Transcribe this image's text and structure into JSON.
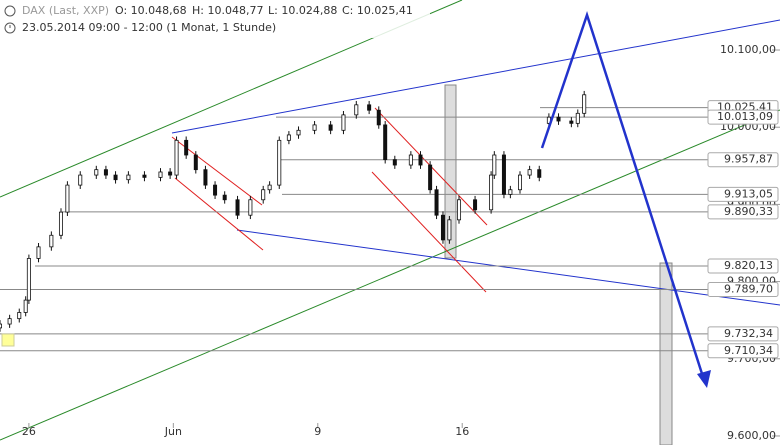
{
  "chart_data": {
    "type": "candlestick",
    "title": "DAX (Last, XXP)",
    "ohlc_header": [
      "O: 10.048,68",
      "H: 10.048,77",
      "L: 10.024,88",
      "C: 10.025,41"
    ],
    "subtitle": "23.05.2014 09:00 - 12:00 (1 Monat, 1 Stunde)",
    "x": [
      0,
      3,
      6,
      8,
      9,
      12,
      16,
      19,
      21,
      25,
      30,
      33,
      36,
      40,
      45,
      50,
      53,
      55,
      58,
      61,
      64,
      67,
      70,
      74,
      78,
      82,
      84,
      87,
      90,
      93,
      98,
      103,
      107,
      111,
      115,
      118,
      120,
      123,
      128,
      131,
      134,
      136,
      138,
      140,
      143,
      148,
      153,
      154,
      157,
      159,
      162,
      165,
      168,
      171,
      174,
      178,
      180,
      182
    ],
    "open": [
      9740,
      9745,
      9752,
      9760,
      9776,
      9830,
      9845,
      9860,
      9890,
      9925,
      9938,
      9945,
      9938,
      9932,
      9938,
      9935,
      9942,
      9938,
      9983,
      9964,
      9945,
      9925,
      9912,
      9906,
      9886,
      9906,
      9919,
      9925,
      9983,
      9990,
      9996,
      10003,
      9996,
      10016,
      10029,
      10022,
      10003,
      9958,
      9951,
      9964,
      9951,
      9919,
      9886,
      9854,
      9880,
      9906,
      9893,
      9938,
      9964,
      9913,
      9919,
      9938,
      9945,
      10005,
      10013,
      10008,
      10005,
      10018
    ],
    "high": [
      9750,
      9757,
      9765,
      9781,
      9835,
      9850,
      9865,
      9895,
      9930,
      9943,
      9950,
      9950,
      9943,
      9943,
      9943,
      9947,
      9947,
      9988,
      9988,
      9969,
      9950,
      9930,
      9917,
      9911,
      9911,
      9924,
      9930,
      9988,
      9995,
      10001,
      10008,
      10008,
      10021,
      10034,
      10034,
      10027,
      10008,
      9963,
      9969,
      9969,
      9956,
      9924,
      9891,
      9885,
      9911,
      9911,
      9943,
      9969,
      9969,
      9924,
      9943,
      9950,
      9950,
      10018,
      10018,
      10013,
      10023,
      10047
    ],
    "low": [
      9735,
      9740,
      9747,
      9755,
      9771,
      9825,
      9840,
      9855,
      9885,
      9920,
      9933,
      9933,
      9927,
      9927,
      9930,
      9930,
      9933,
      9933,
      9959,
      9940,
      9920,
      9907,
      9901,
      9881,
      9881,
      9901,
      9914,
      9920,
      9978,
      9985,
      9991,
      9991,
      9991,
      10011,
      10017,
      9998,
      9953,
      9946,
      9946,
      9946,
      9914,
      9881,
      9849,
      9849,
      9875,
      9888,
      9888,
      9933,
      9908,
      9908,
      9914,
      9933,
      9930,
      10000,
      10003,
      10000,
      10000,
      10013
    ],
    "close": [
      9745,
      9752,
      9760,
      9776,
      9830,
      9845,
      9860,
      9890,
      9925,
      9938,
      9945,
      9938,
      9932,
      9938,
      9935,
      9942,
      9938,
      9983,
      9964,
      9945,
      9925,
      9912,
      9906,
      9886,
      9906,
      9919,
      9925,
      9983,
      9990,
      9996,
      10003,
      9996,
      10016,
      10029,
      10022,
      10003,
      9958,
      9951,
      9964,
      9951,
      9919,
      9886,
      9854,
      9880,
      9906,
      9893,
      9938,
      9964,
      9913,
      9919,
      9938,
      9945,
      9935,
      10013,
      10008,
      10005,
      10018,
      10042
    ],
    "xlim": [
      0,
      243
    ],
    "xticks": [
      {
        "value": 9,
        "label": "26"
      },
      {
        "value": 54,
        "label": "Jun"
      },
      {
        "value": 99,
        "label": "9"
      },
      {
        "value": 144,
        "label": "16"
      }
    ],
    "ylim": [
      9588.3,
      10164.8
    ],
    "yticks": [
      {
        "value": 10100,
        "label": "10.100,00"
      },
      {
        "value": 10000,
        "label": "10.000,00"
      },
      {
        "value": 9900,
        "label": "9.900,00"
      },
      {
        "value": 9800,
        "label": "9.800,00"
      },
      {
        "value": 9700,
        "label": "9.700,00"
      },
      {
        "value": 9600,
        "label": "9.600,00"
      }
    ],
    "levels": [
      {
        "value": 10025.41,
        "label": "10.025,41"
      },
      {
        "value": 10013.09,
        "label": "10.013,09"
      },
      {
        "value": 9957.87,
        "label": "9.957,87"
      },
      {
        "value": 9913.05,
        "label": "9.913,05"
      },
      {
        "value": 9890.33,
        "label": "9.890,33"
      },
      {
        "value": 9820.13,
        "label": "9.820,13"
      },
      {
        "value": 9789.7,
        "label": "9.789,70"
      },
      {
        "value": 9732.34,
        "label": "9.732,34"
      },
      {
        "value": 9710.34,
        "label": "9.710,34"
      }
    ]
  }
}
